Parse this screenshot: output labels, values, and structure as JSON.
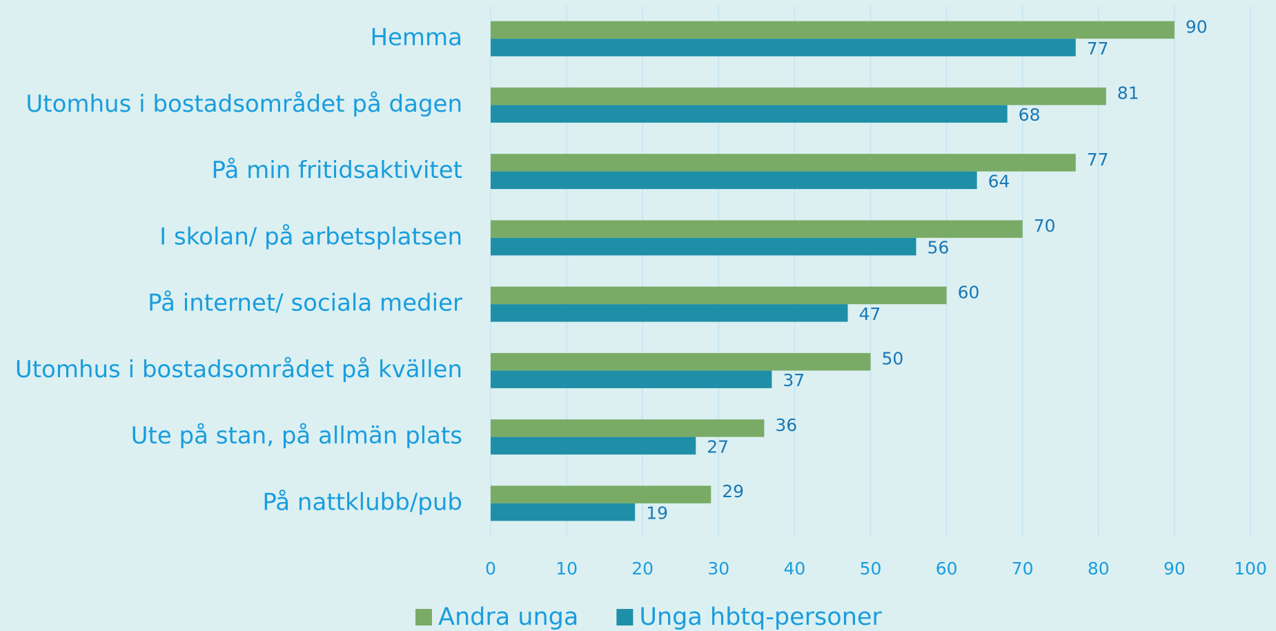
{
  "chart_data": {
    "type": "bar",
    "orientation": "horizontal",
    "categories": [
      "Hemma",
      "Utomhus i bostadsområdet på dagen",
      "På min fritidsaktivitet",
      "I skolan/ på arbetsplatsen",
      "På internet/ sociala medier",
      "Utomhus i bostadsområdet på kvällen",
      "Ute på stan, på allmän plats",
      "På nattklubb/pub"
    ],
    "series": [
      {
        "name": "Andra unga",
        "color": "#7aab66",
        "values": [
          90,
          81,
          77,
          70,
          60,
          50,
          36,
          29
        ]
      },
      {
        "name": "Unga hbtq-personer",
        "color": "#1e8fa7",
        "values": [
          77,
          68,
          64,
          56,
          47,
          37,
          27,
          19
        ]
      }
    ],
    "xlim": [
      0,
      100
    ],
    "xticks": [
      0,
      10,
      20,
      30,
      40,
      50,
      60,
      70,
      80,
      90,
      100
    ],
    "grid": true,
    "legend": "bottom"
  }
}
